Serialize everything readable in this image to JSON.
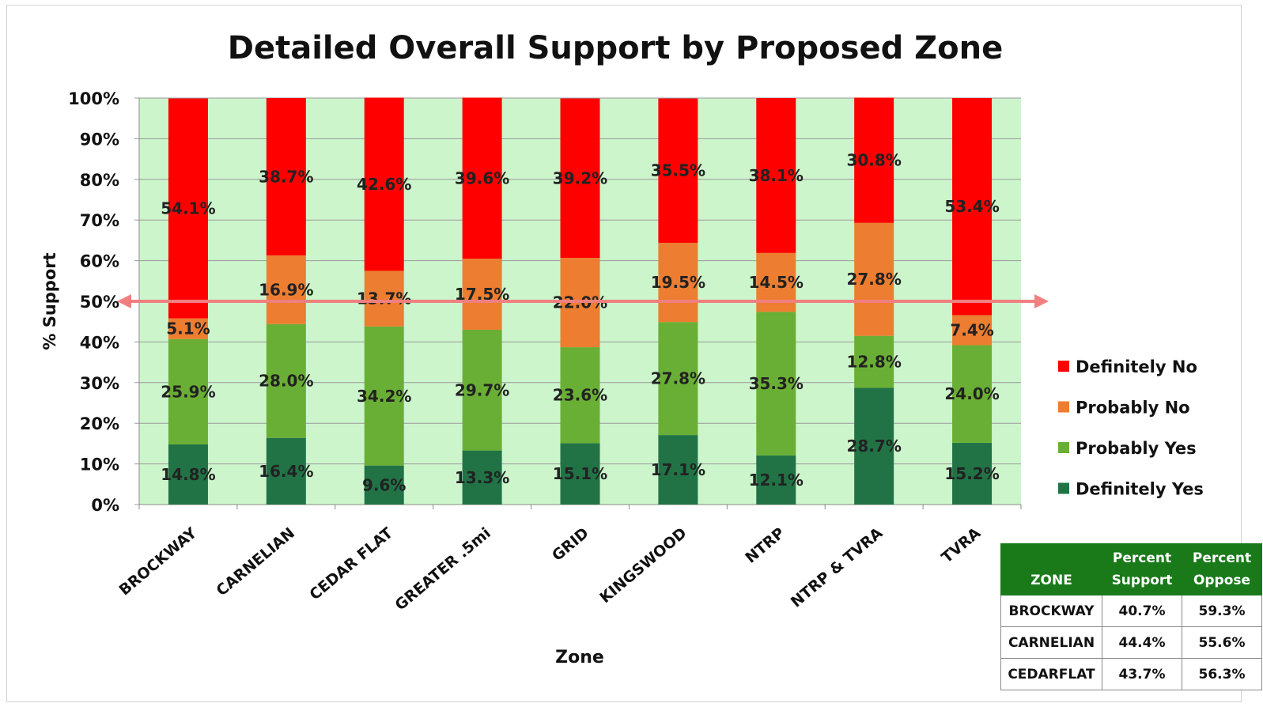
{
  "chart_data": {
    "type": "bar",
    "stacked": true,
    "title": "Detailed Overall Support by Proposed Zone",
    "xlabel": "Zone",
    "ylabel": "% Support",
    "ylim": [
      0,
      100
    ],
    "ytick_labels": [
      "0%",
      "10%",
      "20%",
      "30%",
      "40%",
      "50%",
      "60%",
      "70%",
      "80%",
      "90%",
      "100%"
    ],
    "categories": [
      "BROCKWAY",
      "CARNELIAN",
      "CEDAR FLAT",
      "GREATER .5mi",
      "GRID",
      "KINGSWOOD",
      "NTRP",
      "NTRP & TVRA",
      "TVRA"
    ],
    "series": [
      {
        "name": "Definitely Yes",
        "color": "#217346",
        "values": [
          14.8,
          16.4,
          9.6,
          13.3,
          15.1,
          17.1,
          12.1,
          28.7,
          15.2
        ],
        "labels": [
          "14.8%",
          "16.4%",
          "9.6%",
          "13.3%",
          "15.1%",
          "17.1%",
          "12.1%",
          "28.7%",
          "15.2%"
        ]
      },
      {
        "name": "Probably Yes",
        "color": "#6aaf35",
        "values": [
          25.9,
          28.0,
          34.2,
          29.7,
          23.6,
          27.8,
          35.3,
          12.8,
          24.0
        ],
        "labels": [
          "25.9%",
          "28.0%",
          "34.2%",
          "29.7%",
          "23.6%",
          "27.8%",
          "35.3%",
          "12.8%",
          "24.0%"
        ]
      },
      {
        "name": "Probably No",
        "color": "#ed7d31",
        "values": [
          5.1,
          16.9,
          13.7,
          17.5,
          22.0,
          19.5,
          14.5,
          27.8,
          7.4
        ],
        "labels": [
          "5.1%",
          "16.9%",
          "13.7%",
          "17.5%",
          "22.0%",
          "19.5%",
          "14.5%",
          "27.8%",
          "7.4%"
        ]
      },
      {
        "name": "Definitely No",
        "color": "#ff0000",
        "values": [
          54.1,
          38.7,
          42.6,
          39.6,
          39.2,
          35.5,
          38.1,
          30.8,
          53.4
        ],
        "labels": [
          "54.1%",
          "38.7%",
          "42.6%",
          "39.6%",
          "39.2%",
          "35.5%",
          "38.1%",
          "30.8%",
          "53.4%"
        ]
      }
    ],
    "reference_line": {
      "value": 50,
      "color": "#f08080",
      "style": "double-arrow"
    },
    "plot_background": "#ccf5cc",
    "grid": true,
    "legend_position": "right"
  },
  "summary_table": {
    "headers": {
      "zone": "ZONE",
      "support": "Percent Support",
      "oppose": "Percent Oppose"
    },
    "rows": [
      {
        "zone": "BROCKWAY",
        "support": "40.7%",
        "oppose": "59.3%"
      },
      {
        "zone": "CARNELIAN",
        "support": "44.4%",
        "oppose": "55.6%"
      },
      {
        "zone": "CEDARFLAT",
        "support": "43.7%",
        "oppose": "56.3%"
      }
    ]
  }
}
